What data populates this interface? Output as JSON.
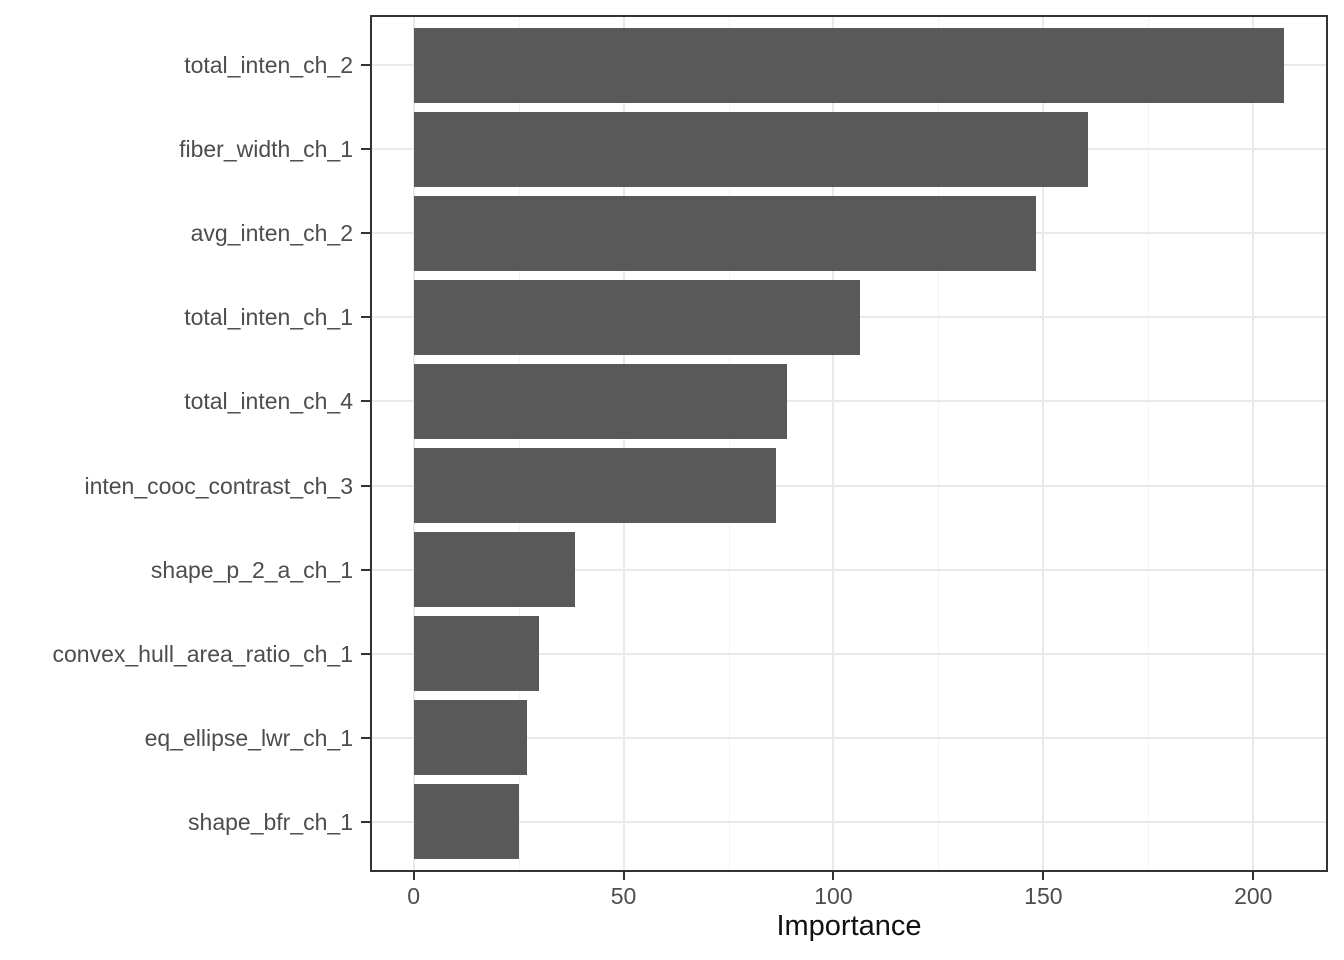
{
  "chart_data": {
    "type": "bar",
    "orientation": "horizontal",
    "title": "",
    "xlabel": "Importance",
    "ylabel": "",
    "categories": [
      "total_inten_ch_2",
      "fiber_width_ch_1",
      "avg_inten_ch_2",
      "total_inten_ch_1",
      "total_inten_ch_4",
      "inten_cooc_contrast_ch_3",
      "shape_p_2_a_ch_1",
      "convex_hull_area_ratio_ch_1",
      "eq_ellipse_lwr_ch_1",
      "shape_bfr_ch_1"
    ],
    "values": [
      207.4,
      160.6,
      148.3,
      106.4,
      89.0,
      86.4,
      38.4,
      29.9,
      27.0,
      25.2
    ],
    "x_ticks": [
      0,
      50,
      100,
      150,
      200
    ],
    "x_tick_labels": [
      "0",
      "50",
      "100",
      "150",
      "200"
    ],
    "x_minor_ticks": [
      25,
      75,
      125,
      175
    ],
    "xlim": [
      -10.4,
      217.8
    ],
    "grid": true,
    "legend": false,
    "colors": {
      "bar": "#595959",
      "panel_border": "#333333",
      "grid_major": "#e9e9e9",
      "grid_minor": "#f4f4f4",
      "axis_text": "#4d4d4d",
      "axis_title": "#111111",
      "background": "#ffffff",
      "tick": "#333333"
    }
  }
}
